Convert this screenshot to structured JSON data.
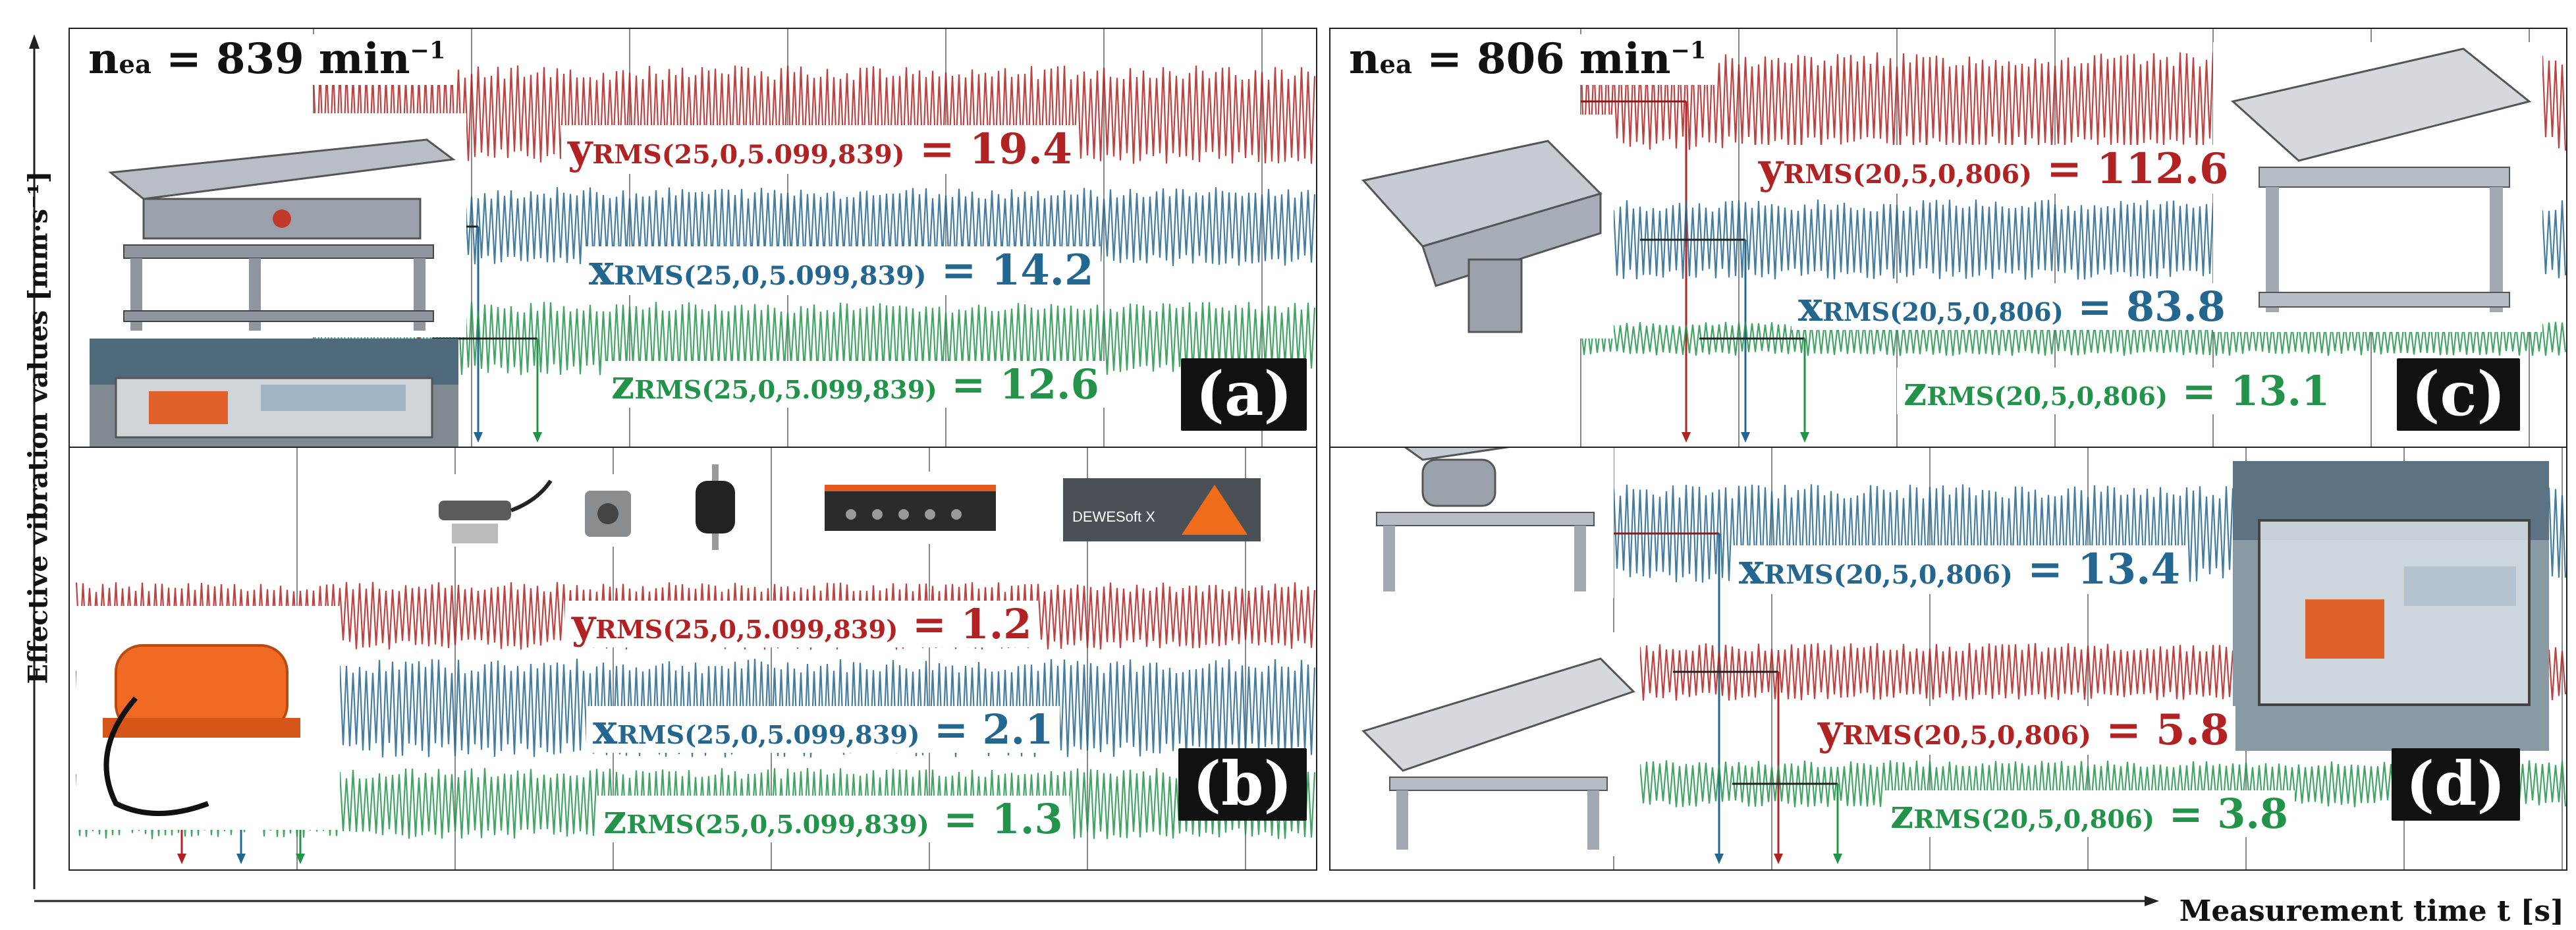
{
  "axes": {
    "ylabel": "Effective vibration values [mm·s⁻¹]",
    "xlabel": "Measurement time t [s]"
  },
  "colors": {
    "y": "#b22222",
    "x": "#23668f",
    "z": "#22944a"
  },
  "chart_data": [
    {
      "type": "line",
      "panel_label": "(a)",
      "speed_text": "n",
      "speed_sub": "ea",
      "speed_value": " = 839 min",
      "speed_sup": "−1",
      "series": [
        {
          "axis": "y",
          "prefix": "y",
          "sub": "RMS(25,0,5.099,839)",
          "value": "19.4",
          "rms": 19.4
        },
        {
          "axis": "x",
          "prefix": "x",
          "sub": "RMS(25,0,5.099,839)",
          "value": "14.2",
          "rms": 14.2
        },
        {
          "axis": "z",
          "prefix": "z",
          "sub": "RMS(25,0,5.099,839)",
          "value": "12.6",
          "rms": 12.6
        }
      ],
      "images": [
        "vibrating-conveyor-cad-icon",
        "vibrating-conveyor-test-rig-photo-icon"
      ]
    },
    {
      "type": "line",
      "panel_label": "(b)",
      "series": [
        {
          "axis": "y",
          "prefix": "y",
          "sub": "RMS(25,0,5.099,839)",
          "value": "1.2",
          "rms": 1.2
        },
        {
          "axis": "x",
          "prefix": "x",
          "sub": "RMS(25,0,5.099,839)",
          "value": "2.1",
          "rms": 2.1
        },
        {
          "axis": "z",
          "prefix": "z",
          "sub": "RMS(25,0,5.099,839)",
          "value": "1.3",
          "rms": 1.3
        }
      ],
      "sensor_software": "DEWESoft X",
      "images": [
        "laser-sensor-icon",
        "accelerometer-icon",
        "rubber-damper-icon",
        "data-acquisition-unit-icon",
        "dewesoft-logo-icon",
        "vibration-motor-icon"
      ]
    },
    {
      "type": "line",
      "panel_label": "(c)",
      "speed_text": "n",
      "speed_sub": "ea",
      "speed_value": " = 806 min",
      "speed_sup": "−1",
      "series": [
        {
          "axis": "y",
          "prefix": "y",
          "sub": "RMS(20,5,0,806)",
          "value": "112.6",
          "rms": 112.6
        },
        {
          "axis": "x",
          "prefix": "x",
          "sub": "RMS(20,5,0,806)",
          "value": "83.8",
          "rms": 83.8
        },
        {
          "axis": "z",
          "prefix": "z",
          "sub": "RMS(20,5,0,806)",
          "value": "13.1",
          "rms": 13.1
        }
      ],
      "images": [
        "trough-cad-icon",
        "conveyor-cad-icon"
      ]
    },
    {
      "type": "line",
      "panel_label": "(d)",
      "series": [
        {
          "axis": "x",
          "prefix": "x",
          "sub": "RMS(20,5,0,806)",
          "value": "13.4",
          "rms": 13.4
        },
        {
          "axis": "y",
          "prefix": "y",
          "sub": "RMS(20,5,0,806)",
          "value": "5.8",
          "rms": 5.8
        },
        {
          "axis": "z",
          "prefix": "z",
          "sub": "RMS(20,5,0,806)",
          "value": "3.8",
          "rms": 3.8
        }
      ],
      "images": [
        "conveyor-frame-cad-icon",
        "inclined-conveyor-cad-icon",
        "enclosed-test-rig-photo-icon"
      ]
    }
  ]
}
